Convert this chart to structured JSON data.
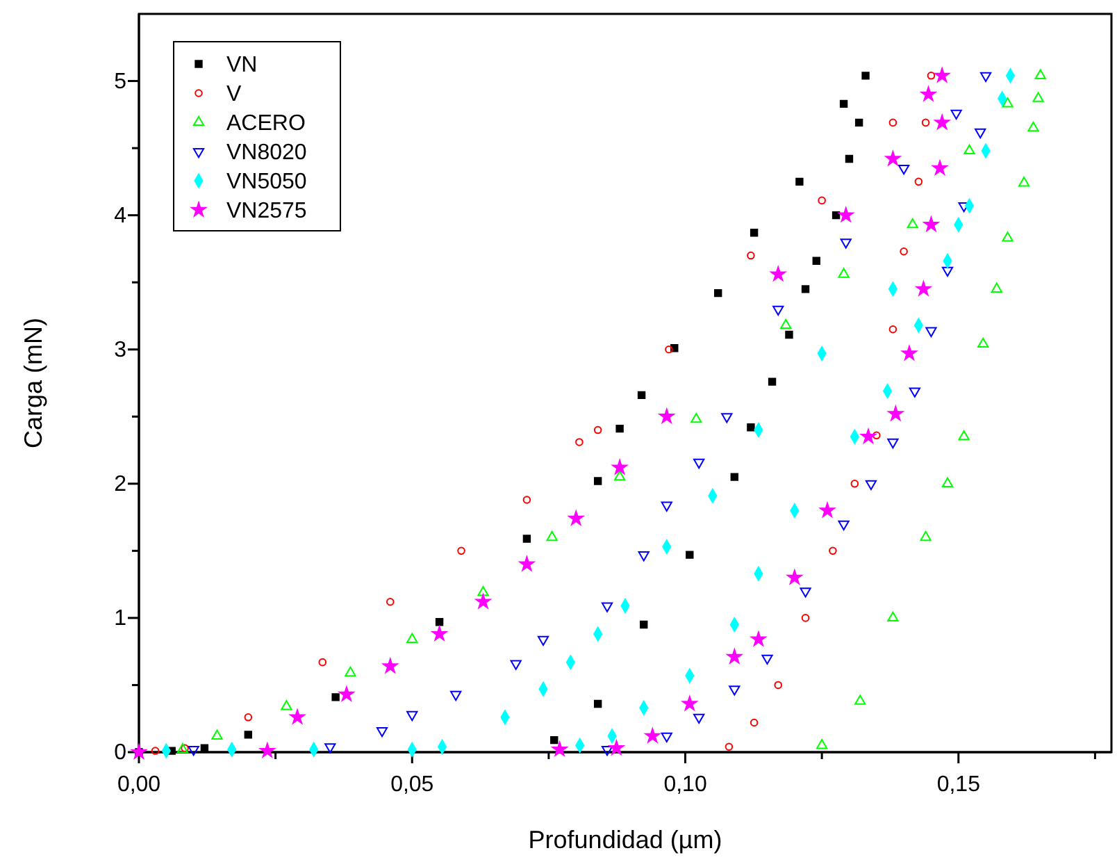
{
  "chart_data": {
    "type": "scatter",
    "xlabel": "Profundidad (µm)",
    "ylabel": "Carga (mN)",
    "xlim": [
      0,
      0.178
    ],
    "ylim": [
      0,
      5.5
    ],
    "xticks": [
      {
        "value": 0,
        "label": "0,00"
      },
      {
        "value": 0.025,
        "label": null
      },
      {
        "value": 0.05,
        "label": "0,05"
      },
      {
        "value": 0.075,
        "label": null
      },
      {
        "value": 0.1,
        "label": "0,10"
      },
      {
        "value": 0.125,
        "label": null
      },
      {
        "value": 0.15,
        "label": "0,15"
      },
      {
        "value": 0.175,
        "label": null
      }
    ],
    "yticks": [
      0,
      {
        "value": 0.5,
        "label": null
      },
      1,
      {
        "value": 1.5,
        "label": null
      },
      2,
      {
        "value": 2.5,
        "label": null
      },
      3,
      {
        "value": 3.5,
        "label": null
      },
      4,
      {
        "value": 4.5,
        "label": null
      },
      5
    ],
    "legend": "top left",
    "grid": false,
    "series": [
      {
        "name": "VN",
        "color": "#000000",
        "marker": "square",
        "x": [
          0,
          0.006,
          0.012,
          0.02,
          0.036,
          0.055,
          0.071,
          0.084,
          0.088,
          0.092,
          0.098,
          0.106,
          0.1126,
          0.1209,
          0.129,
          0.133,
          0.1318,
          0.13,
          0.1276,
          0.124,
          0.122,
          0.119,
          0.1159,
          0.112,
          0.109,
          0.1008,
          0.0924,
          0.084,
          0.076
        ],
        "values": [
          0,
          0.01,
          0.03,
          0.13,
          0.41,
          0.97,
          1.59,
          2.02,
          2.41,
          2.66,
          3.01,
          3.42,
          3.87,
          4.25,
          4.83,
          5.04,
          4.69,
          4.42,
          4.0,
          3.66,
          3.45,
          3.11,
          2.76,
          2.42,
          2.05,
          1.47,
          0.95,
          0.36,
          0.09
        ]
      },
      {
        "name": "V",
        "color": "#ff0000",
        "marker": "circle",
        "x": [
          0.003,
          0.0084,
          0.02,
          0.0336,
          0.046,
          0.059,
          0.071,
          0.0806,
          0.084,
          0.097,
          0.112,
          0.125,
          0.138,
          0.145,
          0.144,
          0.1427,
          0.14,
          0.138,
          0.135,
          0.131,
          0.127,
          0.122,
          0.117,
          0.1126,
          0.108
        ],
        "values": [
          0.01,
          0.03,
          0.26,
          0.67,
          1.12,
          1.5,
          1.88,
          2.31,
          2.4,
          3.0,
          3.7,
          4.11,
          4.69,
          5.04,
          4.69,
          4.25,
          3.73,
          3.15,
          2.36,
          2.0,
          1.5,
          1.0,
          0.5,
          0.22,
          0.04
        ]
      },
      {
        "name": "ACERO",
        "color": "#00ff00",
        "marker": "triangle",
        "x": [
          0.008,
          0.0143,
          0.027,
          0.0387,
          0.05,
          0.063,
          0.0756,
          0.088,
          0.102,
          0.1184,
          0.129,
          0.1416,
          0.152,
          0.159,
          0.165,
          0.1646,
          0.1637,
          0.162,
          0.159,
          0.157,
          0.1545,
          0.151,
          0.148,
          0.144,
          0.138,
          0.132,
          0.125
        ],
        "values": [
          0.02,
          0.12,
          0.34,
          0.59,
          0.84,
          1.19,
          1.6,
          2.05,
          2.48,
          3.18,
          3.56,
          3.93,
          4.48,
          4.83,
          5.04,
          4.87,
          4.65,
          4.24,
          3.83,
          3.45,
          3.04,
          2.35,
          2.0,
          1.6,
          1.0,
          0.38,
          0.05
        ]
      },
      {
        "name": "VN8020",
        "color": "#0000ff",
        "marker": "triangle-down",
        "x": [
          0.01,
          0.035,
          0.0445,
          0.05,
          0.058,
          0.069,
          0.074,
          0.0857,
          0.0924,
          0.0966,
          0.1025,
          0.1076,
          0.117,
          0.1294,
          0.14,
          0.1496,
          0.155,
          0.154,
          0.151,
          0.148,
          0.145,
          0.142,
          0.138,
          0.134,
          0.129,
          0.122,
          0.115,
          0.109,
          0.1025,
          0.0966,
          0.0857
        ],
        "values": [
          0.02,
          0.04,
          0.16,
          0.28,
          0.43,
          0.66,
          0.84,
          1.09,
          1.47,
          1.84,
          2.16,
          2.5,
          3.3,
          3.8,
          4.35,
          4.76,
          5.04,
          4.62,
          4.07,
          3.59,
          3.14,
          2.69,
          2.31,
          2.0,
          1.7,
          1.2,
          0.7,
          0.47,
          0.26,
          0.12,
          0.02
        ]
      },
      {
        "name": "VN5050",
        "color": "#00ffff",
        "marker": "diamond",
        "x": [
          0.005,
          0.017,
          0.032,
          0.05,
          0.0555,
          0.067,
          0.074,
          0.079,
          0.084,
          0.089,
          0.0966,
          0.105,
          0.1134,
          0.125,
          0.138,
          0.15,
          0.1595,
          0.158,
          0.155,
          0.152,
          0.148,
          0.1427,
          0.137,
          0.131,
          0.12,
          0.1134,
          0.109,
          0.1008,
          0.0924,
          0.0866,
          0.0807
        ],
        "values": [
          0.01,
          0.02,
          0.02,
          0.02,
          0.04,
          0.26,
          0.47,
          0.67,
          0.88,
          1.09,
          1.53,
          1.91,
          2.4,
          2.97,
          3.45,
          3.93,
          5.04,
          4.87,
          4.48,
          4.07,
          3.66,
          3.18,
          2.69,
          2.35,
          1.8,
          1.33,
          0.95,
          0.57,
          0.33,
          0.12,
          0.05
        ]
      },
      {
        "name": "VN2575",
        "color": "#ff00ff",
        "marker": "star",
        "x": [
          0,
          0.0235,
          0.029,
          0.038,
          0.046,
          0.055,
          0.063,
          0.071,
          0.08,
          0.088,
          0.0966,
          0.117,
          0.1294,
          0.138,
          0.1445,
          0.147,
          0.147,
          0.1466,
          0.145,
          0.1436,
          0.141,
          0.1385,
          0.1335,
          0.126,
          0.12,
          0.1134,
          0.109,
          0.1008,
          0.094,
          0.0874,
          0.077
        ],
        "values": [
          0,
          0.01,
          0.26,
          0.43,
          0.64,
          0.88,
          1.12,
          1.4,
          1.74,
          2.12,
          2.5,
          3.56,
          4.0,
          4.42,
          4.9,
          5.04,
          4.69,
          4.35,
          3.93,
          3.45,
          2.97,
          2.52,
          2.35,
          1.8,
          1.3,
          0.84,
          0.71,
          0.36,
          0.12,
          0.03,
          0.02
        ]
      }
    ]
  }
}
